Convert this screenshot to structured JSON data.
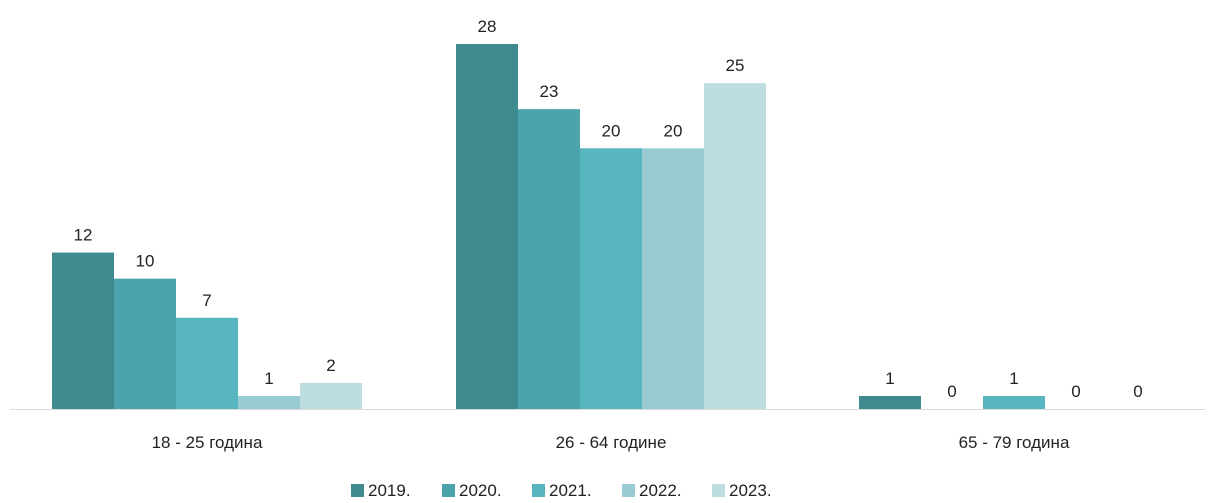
{
  "chart_data": {
    "type": "bar",
    "categories": [
      "18 - 25 година",
      "26 - 64 године",
      "65 - 79 година"
    ],
    "series": [
      {
        "name": "2019.",
        "values": [
          12,
          28,
          1
        ],
        "color": "#3f8a8e"
      },
      {
        "name": "2020.",
        "values": [
          10,
          23,
          0
        ],
        "color": "#4ba3ab"
      },
      {
        "name": "2021.",
        "values": [
          7,
          20,
          1
        ],
        "color": "#58b6c0"
      },
      {
        "name": "2022.",
        "values": [
          1,
          20,
          0
        ],
        "color": "#99cbd2"
      },
      {
        "name": "2023.",
        "values": [
          2,
          25,
          0
        ],
        "color": "#bedde1"
      }
    ],
    "ylim": [
      0,
      28
    ],
    "grid": false,
    "legend_position": "bottom",
    "axis_line_color": "#d9d9d9"
  }
}
